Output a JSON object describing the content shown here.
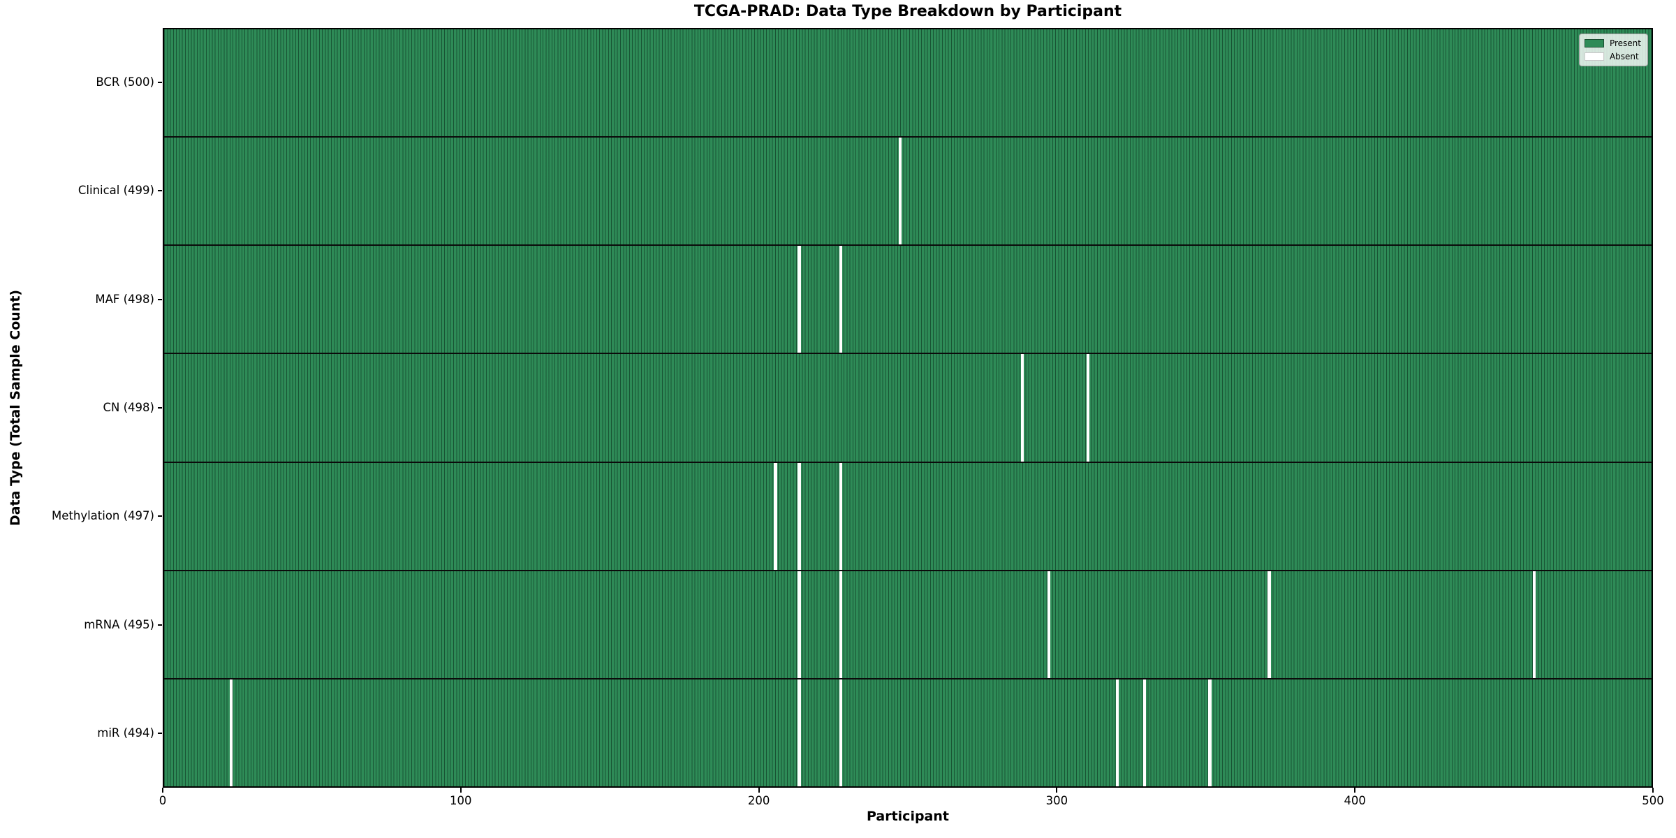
{
  "figure": {
    "title": "TCGA-PRAD: Data Type Breakdown by Participant",
    "xlabel": "Participant",
    "ylabel": "Data Type (Total Sample Count)"
  },
  "legend": {
    "position": "upper right",
    "entries": [
      {
        "label": "Present",
        "color": "#2e8b57"
      },
      {
        "label": "Absent",
        "color": "#ffffff"
      }
    ]
  },
  "colors": {
    "present": "#2e8b57",
    "absent": "#ffffff",
    "cell_edge": "rgba(7,38,23,0.55)",
    "row_separator": "#0b0b0b",
    "axis": "#000000"
  },
  "chart_data": {
    "type": "heatmap",
    "title": "TCGA-PRAD: Data Type Breakdown by Participant",
    "xlabel": "Participant",
    "ylabel": "Data Type (Total Sample Count)",
    "xlim": [
      0,
      500
    ],
    "x_ticks": [
      0,
      100,
      200,
      300,
      400,
      500
    ],
    "n_participants": 500,
    "grid": false,
    "legend_position": "upper right",
    "legend_entries": [
      "Present",
      "Absent"
    ],
    "rows": [
      {
        "label": "BCR (500)",
        "data_type": "BCR",
        "total_samples": 500,
        "absent_participant_indices": []
      },
      {
        "label": "Clinical (499)",
        "data_type": "Clinical",
        "total_samples": 499,
        "absent_participant_indices": [
          247
        ]
      },
      {
        "label": "MAF (498)",
        "data_type": "MAF",
        "total_samples": 498,
        "absent_participant_indices": [
          213,
          227
        ]
      },
      {
        "label": "CN (498)",
        "data_type": "CN",
        "total_samples": 498,
        "absent_participant_indices": [
          288,
          310
        ]
      },
      {
        "label": "Methylation (497)",
        "data_type": "Methylation",
        "total_samples": 497,
        "absent_participant_indices": [
          205,
          213,
          227
        ]
      },
      {
        "label": "mRNA (495)",
        "data_type": "mRNA",
        "total_samples": 495,
        "absent_participant_indices": [
          213,
          227,
          297,
          371,
          460
        ]
      },
      {
        "label": "miR (494)",
        "data_type": "miR",
        "total_samples": 494,
        "absent_participant_indices": [
          22,
          213,
          227,
          320,
          329,
          351
        ]
      }
    ]
  }
}
